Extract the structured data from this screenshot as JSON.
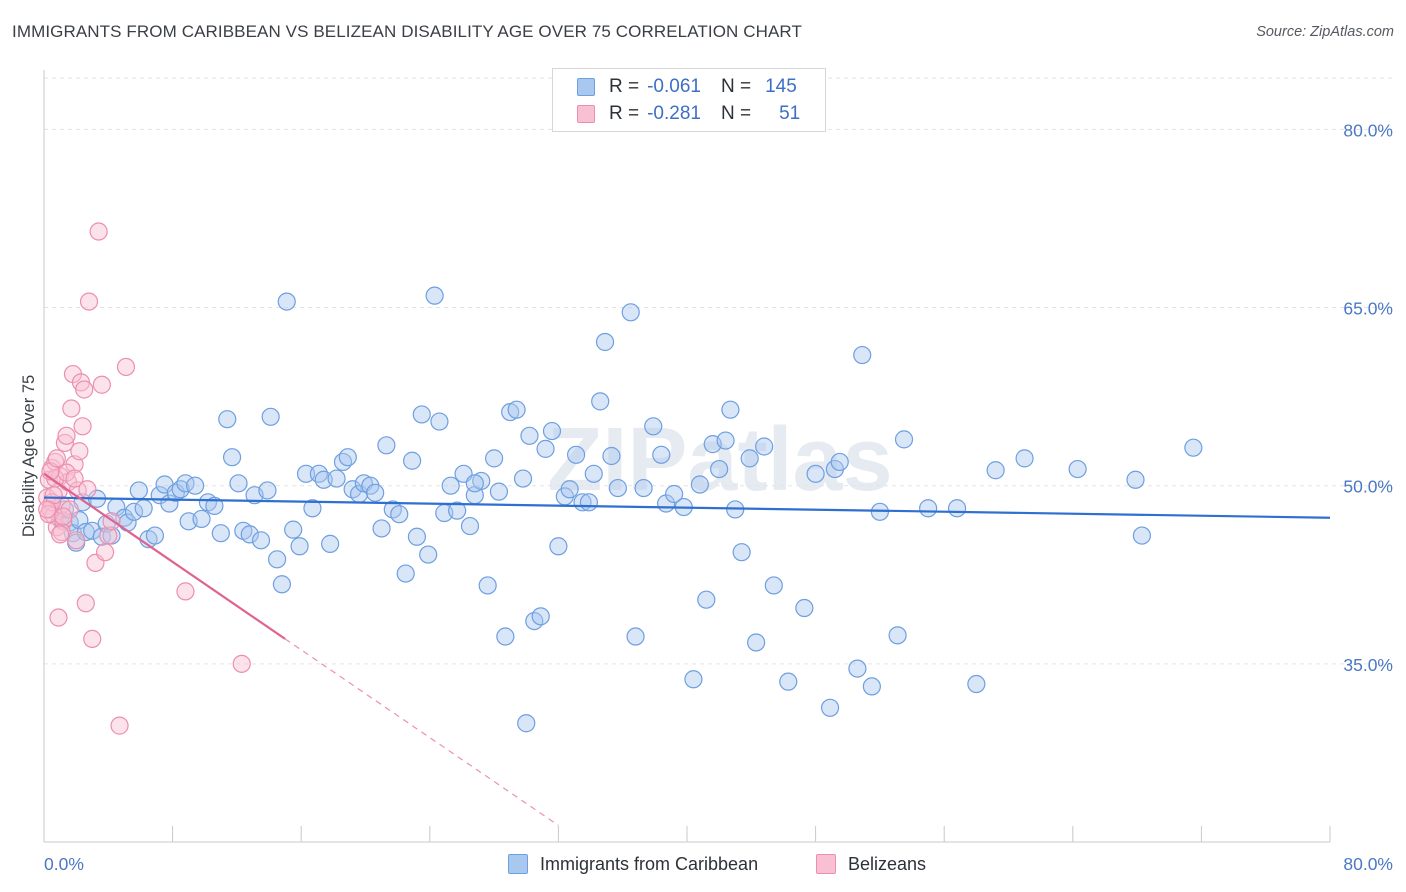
{
  "title": "IMMIGRANTS FROM CARIBBEAN VS BELIZEAN DISABILITY AGE OVER 75 CORRELATION CHART",
  "source": "Source: ZipAtlas.com",
  "watermark": "ZIPatlas",
  "legend": {
    "rows": [
      {
        "r_label": "R =",
        "r_value": "-0.061",
        "n_label": "N =",
        "n_value": "145",
        "color": "#a8c8f0",
        "border": "#6e9fe0"
      },
      {
        "r_label": "R =",
        "r_value": "-0.281",
        "n_label": "N =",
        "n_value": "51",
        "color": "#f8c0d2",
        "border": "#ec8fae"
      }
    ]
  },
  "bottom_legend": [
    {
      "label": "Immigrants from Caribbean",
      "color": "#a8c8f0",
      "border": "#6e9fe0"
    },
    {
      "label": "Belizeans",
      "color": "#f8c0d2",
      "border": "#ec8fae"
    }
  ],
  "chart_data": {
    "type": "scatter",
    "ylabel": "Disability Age Over 75",
    "xlim": [
      0,
      80
    ],
    "ylim": [
      20,
      85
    ],
    "x_tick_labels": [
      "0.0%",
      "80.0%"
    ],
    "y_ticks": [
      35,
      50,
      65,
      80
    ],
    "y_tick_labels": [
      "35.0%",
      "50.0%",
      "65.0%",
      "80.0%"
    ],
    "grid": true,
    "legend_position": "top-center",
    "colors": {
      "caribbean": "#6e9fe0",
      "caribbean_fill": "#a8c8f0",
      "belizean": "#ec8fae",
      "belizean_fill": "#f8c0d2",
      "caribbean_line": "#2f6fd0",
      "belizean_line": "#e0628f"
    },
    "series": [
      {
        "name": "Immigrants from Caribbean",
        "trend": {
          "x0": 0,
          "y0": 49.0,
          "x1": 80,
          "y1": 47.3
        },
        "points": [
          [
            1.0,
            47.2
          ],
          [
            1.3,
            48.0
          ],
          [
            1.6,
            46.9
          ],
          [
            1.8,
            46.0
          ],
          [
            2.0,
            45.2
          ],
          [
            2.2,
            47.1
          ],
          [
            2.4,
            48.6
          ],
          [
            2.6,
            46.1
          ],
          [
            3.0,
            46.2
          ],
          [
            3.3,
            48.9
          ],
          [
            3.6,
            45.7
          ],
          [
            3.9,
            46.8
          ],
          [
            4.2,
            45.8
          ],
          [
            4.5,
            48.2
          ],
          [
            5.0,
            47.3
          ],
          [
            5.2,
            46.9
          ],
          [
            5.6,
            47.8
          ],
          [
            5.9,
            49.6
          ],
          [
            6.2,
            48.1
          ],
          [
            6.5,
            45.5
          ],
          [
            6.9,
            45.8
          ],
          [
            7.2,
            49.2
          ],
          [
            7.5,
            50.1
          ],
          [
            7.8,
            48.5
          ],
          [
            8.2,
            49.4
          ],
          [
            8.5,
            49.7
          ],
          [
            8.8,
            50.2
          ],
          [
            9.0,
            47.0
          ],
          [
            9.4,
            50.0
          ],
          [
            9.8,
            47.2
          ],
          [
            10.2,
            48.6
          ],
          [
            10.6,
            48.3
          ],
          [
            11.0,
            46.0
          ],
          [
            11.4,
            55.6
          ],
          [
            11.7,
            52.4
          ],
          [
            12.1,
            50.2
          ],
          [
            12.4,
            46.2
          ],
          [
            12.8,
            45.9
          ],
          [
            13.1,
            49.2
          ],
          [
            13.5,
            45.4
          ],
          [
            13.9,
            49.6
          ],
          [
            14.1,
            55.8
          ],
          [
            14.5,
            43.8
          ],
          [
            14.8,
            41.7
          ],
          [
            15.1,
            65.5
          ],
          [
            15.5,
            46.3
          ],
          [
            15.9,
            44.9
          ],
          [
            16.3,
            51.0
          ],
          [
            16.7,
            48.1
          ],
          [
            17.1,
            51.0
          ],
          [
            17.4,
            50.5
          ],
          [
            17.8,
            45.1
          ],
          [
            18.2,
            50.6
          ],
          [
            18.6,
            52.0
          ],
          [
            18.9,
            52.4
          ],
          [
            19.2,
            49.7
          ],
          [
            19.6,
            49.3
          ],
          [
            19.9,
            50.2
          ],
          [
            20.3,
            50.0
          ],
          [
            20.6,
            49.4
          ],
          [
            21.0,
            46.4
          ],
          [
            21.3,
            53.4
          ],
          [
            21.7,
            48.0
          ],
          [
            22.1,
            47.6
          ],
          [
            22.5,
            42.6
          ],
          [
            22.9,
            52.1
          ],
          [
            23.2,
            45.7
          ],
          [
            23.5,
            56.0
          ],
          [
            23.9,
            44.2
          ],
          [
            24.3,
            66.0
          ],
          [
            24.6,
            55.4
          ],
          [
            24.9,
            47.7
          ],
          [
            25.3,
            50.0
          ],
          [
            25.7,
            47.9
          ],
          [
            26.1,
            51.0
          ],
          [
            26.5,
            46.6
          ],
          [
            26.8,
            49.2
          ],
          [
            27.2,
            50.4
          ],
          [
            27.6,
            41.6
          ],
          [
            28.0,
            52.3
          ],
          [
            28.3,
            49.5
          ],
          [
            28.7,
            37.3
          ],
          [
            29.0,
            56.2
          ],
          [
            29.4,
            56.4
          ],
          [
            29.8,
            50.6
          ],
          [
            30.2,
            54.2
          ],
          [
            30.5,
            38.6
          ],
          [
            30.9,
            39.0
          ],
          [
            31.2,
            53.1
          ],
          [
            31.6,
            54.6
          ],
          [
            32.0,
            44.9
          ],
          [
            32.4,
            49.1
          ],
          [
            32.7,
            49.7
          ],
          [
            33.1,
            52.6
          ],
          [
            33.5,
            48.6
          ],
          [
            33.9,
            48.6
          ],
          [
            34.2,
            51.0
          ],
          [
            34.6,
            57.1
          ],
          [
            34.9,
            62.1
          ],
          [
            35.3,
            52.5
          ],
          [
            35.7,
            49.8
          ],
          [
            36.5,
            64.6
          ],
          [
            36.8,
            37.3
          ],
          [
            37.3,
            49.8
          ],
          [
            37.9,
            55.0
          ],
          [
            38.4,
            52.6
          ],
          [
            38.7,
            48.5
          ],
          [
            39.2,
            49.3
          ],
          [
            39.8,
            48.2
          ],
          [
            40.4,
            33.7
          ],
          [
            40.8,
            50.1
          ],
          [
            41.2,
            40.4
          ],
          [
            41.6,
            53.5
          ],
          [
            42.0,
            51.4
          ],
          [
            42.4,
            53.8
          ],
          [
            42.7,
            56.4
          ],
          [
            43.0,
            48.0
          ],
          [
            43.4,
            44.4
          ],
          [
            43.9,
            52.3
          ],
          [
            44.3,
            36.8
          ],
          [
            44.8,
            53.3
          ],
          [
            45.4,
            41.6
          ],
          [
            46.3,
            33.5
          ],
          [
            47.3,
            39.7
          ],
          [
            48.0,
            51.0
          ],
          [
            48.9,
            31.3
          ],
          [
            49.2,
            51.4
          ],
          [
            49.5,
            52.0
          ],
          [
            50.6,
            34.6
          ],
          [
            50.9,
            61.0
          ],
          [
            51.5,
            33.1
          ],
          [
            52.0,
            47.8
          ],
          [
            53.1,
            37.4
          ],
          [
            53.5,
            53.9
          ],
          [
            55.0,
            48.1
          ],
          [
            56.8,
            48.1
          ],
          [
            58.0,
            33.3
          ],
          [
            59.2,
            51.3
          ],
          [
            61.0,
            52.3
          ],
          [
            64.3,
            51.4
          ],
          [
            67.9,
            50.5
          ],
          [
            68.3,
            45.8
          ],
          [
            71.5,
            53.2
          ],
          [
            30.0,
            30.0
          ],
          [
            26.8,
            50.2
          ]
        ]
      },
      {
        "name": "Belizeans",
        "trend": {
          "x0": 0,
          "y0": 51.0,
          "x1": 15,
          "y1": 37.1,
          "dash_to_x": 32,
          "dash_to_y": 21.4
        },
        "points": [
          [
            0.2,
            49.0
          ],
          [
            0.3,
            50.5
          ],
          [
            0.4,
            48.0
          ],
          [
            0.5,
            51.5
          ],
          [
            0.6,
            47.5
          ],
          [
            0.7,
            52.0
          ],
          [
            0.8,
            46.5
          ],
          [
            0.9,
            49.5
          ],
          [
            1.0,
            50.8
          ],
          [
            1.1,
            48.4
          ],
          [
            1.2,
            47.0
          ],
          [
            1.3,
            53.6
          ],
          [
            1.4,
            54.2
          ],
          [
            1.5,
            50.3
          ],
          [
            1.6,
            48.0
          ],
          [
            1.7,
            56.5
          ],
          [
            1.8,
            59.4
          ],
          [
            1.9,
            51.8
          ],
          [
            2.0,
            45.4
          ],
          [
            2.1,
            49.6
          ],
          [
            2.2,
            52.9
          ],
          [
            2.3,
            58.7
          ],
          [
            2.4,
            55.0
          ],
          [
            2.5,
            58.1
          ],
          [
            2.6,
            40.1
          ],
          [
            2.8,
            65.5
          ],
          [
            3.0,
            37.1
          ],
          [
            3.2,
            43.5
          ],
          [
            3.4,
            71.4
          ],
          [
            3.6,
            58.5
          ],
          [
            3.8,
            44.4
          ],
          [
            4.0,
            45.8
          ],
          [
            4.2,
            47.0
          ],
          [
            5.1,
            60.0
          ],
          [
            8.8,
            41.1
          ],
          [
            12.3,
            35.0
          ],
          [
            0.9,
            38.9
          ],
          [
            0.5,
            48.6
          ],
          [
            1.1,
            46.1
          ],
          [
            0.7,
            50.6
          ],
          [
            0.3,
            47.6
          ],
          [
            1.4,
            51.1
          ],
          [
            0.6,
            49.2
          ],
          [
            1.9,
            50.6
          ],
          [
            0.4,
            51.2
          ],
          [
            2.7,
            49.7
          ],
          [
            0.8,
            52.3
          ],
          [
            4.7,
            29.8
          ],
          [
            1.2,
            47.4
          ],
          [
            0.2,
            48.0
          ],
          [
            1.0,
            45.9
          ]
        ]
      }
    ]
  }
}
